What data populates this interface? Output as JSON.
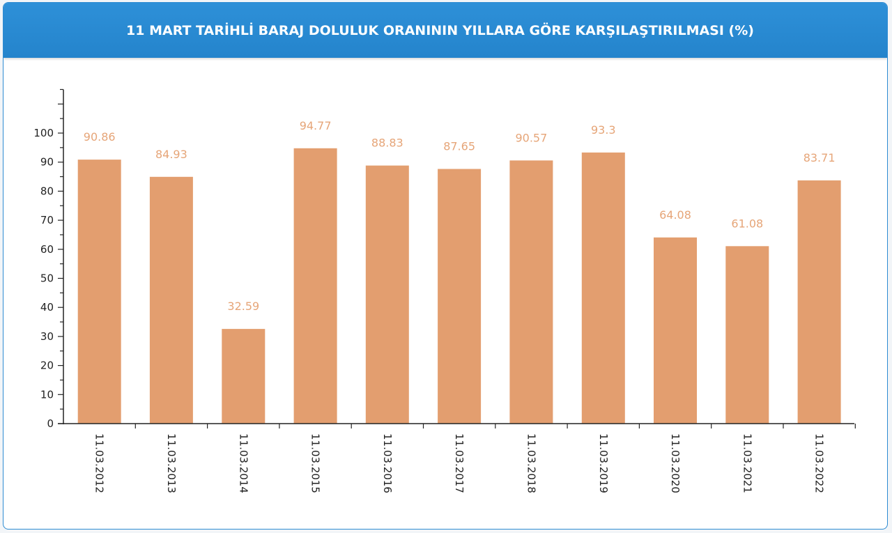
{
  "panel": {
    "title": "11 MART TARİHLİ BARAJ DOLULUK ORANININ YILLARA GÖRE KARŞILAŞTIRILMASI (%)"
  },
  "chart_data": {
    "type": "bar",
    "title": "11 MART TARİHLİ BARAJ DOLULUK ORANININ YILLARA GÖRE KARŞILAŞTIRILMASI (%)",
    "categories": [
      "11.03.2012",
      "11.03.2013",
      "11.03.2014",
      "11.03.2015",
      "11.03.2016",
      "11.03.2017",
      "11.03.2018",
      "11.03.2019",
      "11.03.2020",
      "11.03.2021",
      "11.03.2022"
    ],
    "values": [
      90.86,
      84.93,
      32.59,
      94.77,
      88.83,
      87.65,
      90.57,
      93.3,
      64.08,
      61.08,
      83.71
    ],
    "data_labels": [
      "90.86",
      "84.93",
      "32.59",
      "94.77",
      "88.83",
      "87.65",
      "90.57",
      "93.3",
      "64.08",
      "61.08",
      "83.71"
    ],
    "yticks": [
      0,
      10,
      20,
      30,
      40,
      50,
      60,
      70,
      80,
      90,
      100
    ],
    "ylim": [
      0,
      115
    ],
    "xlabel": "",
    "ylabel": "",
    "grid": false,
    "legend": "none",
    "colors": {
      "bar": "#e39e6f",
      "data_label": "#e6a578",
      "axis": "#222222",
      "header": "#2a8ad3"
    }
  }
}
